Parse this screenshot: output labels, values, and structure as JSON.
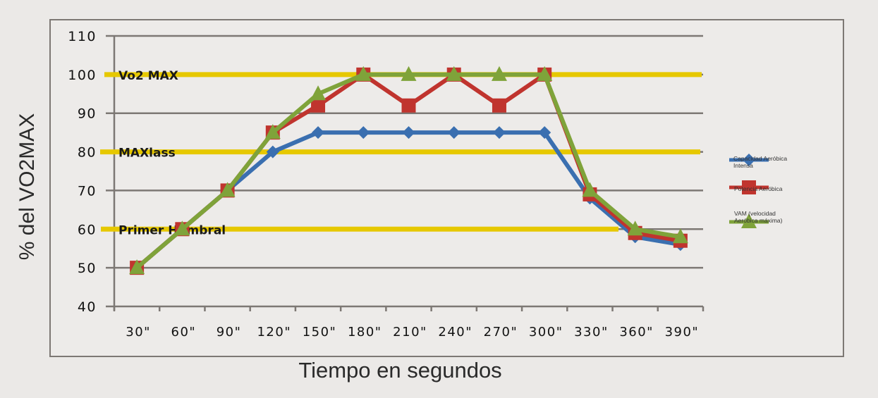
{
  "chart_data": {
    "type": "line",
    "title": "",
    "xlabel": "Tiempo en segundos",
    "ylabel": "% del VO2MAX",
    "categories": [
      "30\"",
      "60\"",
      "90\"",
      "120\"",
      "150\"",
      "180\"",
      "210\"",
      "240\"",
      "270\"",
      "300\"",
      "330\"",
      "360\"",
      "390\""
    ],
    "ylim": [
      40,
      110
    ],
    "yticks": [
      40,
      50,
      60,
      70,
      80,
      90,
      100,
      110
    ],
    "grid": true,
    "legend_position": "right",
    "series": [
      {
        "name": "Capacidad Aeróbica Intensa",
        "color": "#3a6fb0",
        "marker": "diamond",
        "values": [
          50,
          60,
          70,
          80,
          85,
          85,
          85,
          85,
          85,
          85,
          68,
          58,
          56
        ]
      },
      {
        "name": "Potencia Aeróbica",
        "color": "#c0342e",
        "marker": "square",
        "values": [
          50,
          60,
          70,
          85,
          92,
          100,
          92,
          100,
          92,
          100,
          69,
          59,
          57
        ]
      },
      {
        "name": "VAM (velocidad Aeróbica máxima)",
        "color": "#7fa33a",
        "marker": "triangle",
        "values": [
          50,
          60,
          70,
          85,
          95,
          100,
          100,
          100,
          100,
          100,
          70,
          60,
          58
        ]
      }
    ],
    "reference_lines": [
      {
        "label": "Vo2 MAX",
        "value": 100,
        "color": "#e6c800"
      },
      {
        "label": "MAXlass",
        "value": 80,
        "color": "#e6c800"
      },
      {
        "label": "Primer Humbral",
        "value": 60,
        "color": "#e6c800"
      }
    ]
  },
  "legend": {
    "items": [
      {
        "line1": "Capacidad Aeróbica",
        "line2": "Intensa"
      },
      {
        "line1": "Potencia Aeróbica",
        "line2": ""
      },
      {
        "line1": "VAM (velocidad",
        "line2": "Aeróbica máxima)"
      }
    ]
  },
  "axes": {
    "x_title": "Tiempo en segundos",
    "y_title": "% del VO2MAX"
  }
}
